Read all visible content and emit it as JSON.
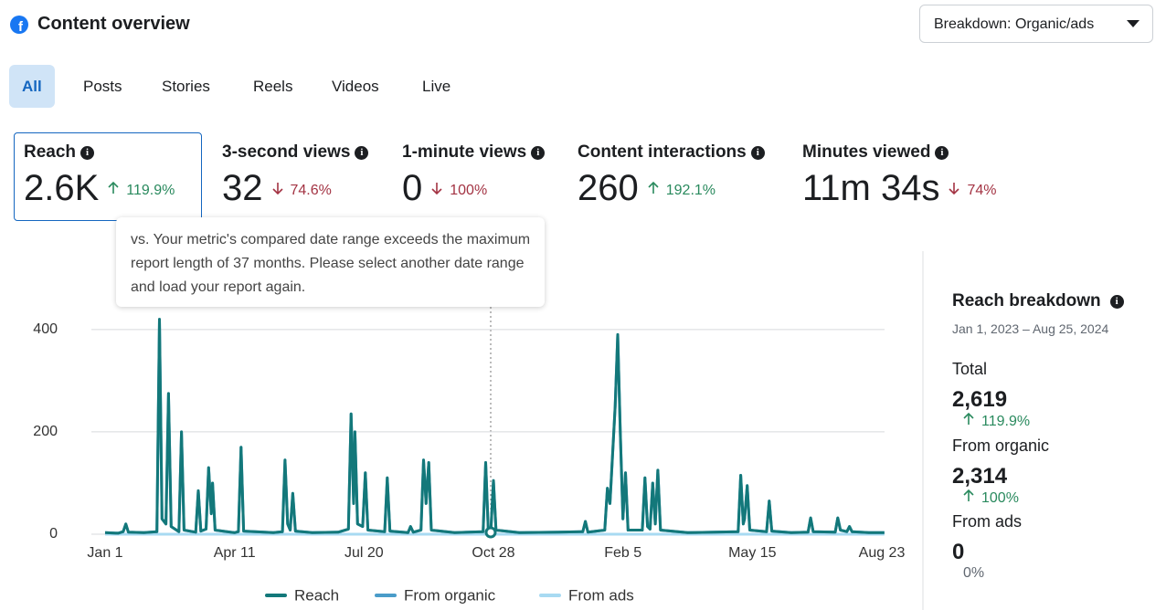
{
  "header": {
    "title": "Content overview",
    "breakdown_button": "Breakdown: Organic/ads"
  },
  "tabs": {
    "items": [
      "All",
      "Posts",
      "Stories",
      "Reels",
      "Videos",
      "Live"
    ],
    "selected": 0
  },
  "metrics": [
    {
      "label": "Reach",
      "value": "2.6K",
      "change": "119.9%",
      "direction": "up"
    },
    {
      "label": "3-second views",
      "value": "32",
      "change": "74.6%",
      "direction": "down"
    },
    {
      "label": "1-minute views",
      "value": "0",
      "change": "100%",
      "direction": "down"
    },
    {
      "label": "Content interactions",
      "value": "260",
      "change": "192.1%",
      "direction": "up"
    },
    {
      "label": "Minutes viewed",
      "value": "11m 34s",
      "change": "74%",
      "direction": "down"
    }
  ],
  "tooltip": "vs. Your metric's compared date range exceeds the maximum report length of 37 months. Please select another date range and load your report again.",
  "chart_data": {
    "type": "line",
    "xlim": [
      0,
      602
    ],
    "xticks": [
      {
        "value": 0,
        "label": "Jan 1"
      },
      {
        "value": 100,
        "label": "Apr 11"
      },
      {
        "value": 200,
        "label": "Jul 20"
      },
      {
        "value": 300,
        "label": "Oct 28"
      },
      {
        "value": 400,
        "label": "Feb 5"
      },
      {
        "value": 500,
        "label": "May 15"
      },
      {
        "value": 600,
        "label": "Aug 23"
      }
    ],
    "ylim": [
      0,
      430
    ],
    "yticks": [
      0,
      200,
      400
    ],
    "grid": true,
    "series": [
      {
        "name": "Reach",
        "color": "#13787a",
        "x": [
          0,
          10,
          14,
          16,
          18,
          30,
          40,
          42,
          44,
          47,
          49,
          51,
          57,
          59,
          61,
          70,
          72,
          74,
          78,
          80,
          82,
          83,
          85,
          100,
          103,
          105,
          107,
          130,
          137,
          139,
          141,
          143,
          145,
          147,
          160,
          180,
          188,
          190,
          192,
          193,
          195,
          199,
          201,
          203,
          216,
          218,
          220,
          234,
          236,
          238,
          244,
          246,
          248,
          250,
          252,
          270,
          292,
          294,
          296,
          298,
          300,
          302,
          320,
          350,
          369,
          371,
          373,
          386,
          388,
          390,
          394,
          396,
          398,
          400,
          402,
          404,
          415,
          417,
          419,
          421,
          423,
          425,
          427,
          429,
          450,
          489,
          491,
          493,
          494,
          496,
          498,
          511,
          513,
          515,
          530,
          543,
          545,
          547,
          564,
          566,
          568,
          573,
          575,
          577,
          590,
          602
        ],
        "values": [
          3,
          2,
          5,
          20,
          4,
          3,
          5,
          420,
          30,
          20,
          275,
          15,
          5,
          200,
          8,
          4,
          85,
          6,
          10,
          130,
          40,
          100,
          8,
          3,
          5,
          170,
          6,
          3,
          5,
          145,
          20,
          8,
          80,
          6,
          3,
          4,
          10,
          235,
          60,
          200,
          20,
          15,
          120,
          8,
          5,
          110,
          6,
          3,
          15,
          4,
          8,
          145,
          60,
          140,
          8,
          3,
          5,
          140,
          10,
          8,
          105,
          8,
          3,
          4,
          5,
          25,
          4,
          8,
          90,
          60,
          250,
          390,
          200,
          30,
          120,
          8,
          8,
          110,
          15,
          10,
          100,
          20,
          125,
          8,
          3,
          5,
          115,
          20,
          30,
          95,
          8,
          5,
          65,
          6,
          3,
          4,
          32,
          5,
          4,
          32,
          8,
          5,
          15,
          5,
          3,
          3
        ]
      },
      {
        "name": "From organic",
        "color": "#4a9cc9",
        "x": [
          0,
          10,
          14,
          16,
          18,
          30,
          40,
          42,
          44,
          47,
          49,
          51,
          57,
          59,
          61,
          70,
          72,
          74,
          78,
          80,
          82,
          83,
          85,
          100,
          103,
          105,
          107,
          130,
          137,
          139,
          141,
          143,
          145,
          147,
          160,
          180,
          188,
          190,
          192,
          193,
          195,
          199,
          201,
          203,
          216,
          218,
          220,
          234,
          236,
          238,
          244,
          246,
          248,
          250,
          252,
          270,
          292,
          294,
          296,
          298,
          300,
          302,
          320,
          350,
          369,
          371,
          373,
          386,
          388,
          390,
          394,
          396,
          398,
          400,
          402,
          404,
          415,
          417,
          419,
          421,
          423,
          425,
          427,
          429,
          450,
          489,
          491,
          493,
          494,
          496,
          498,
          511,
          513,
          515,
          530,
          543,
          545,
          547,
          564,
          566,
          568,
          573,
          575,
          577,
          590,
          602
        ],
        "values": [
          3,
          2,
          5,
          20,
          4,
          3,
          5,
          420,
          30,
          20,
          275,
          15,
          5,
          200,
          8,
          4,
          85,
          6,
          10,
          130,
          40,
          100,
          8,
          3,
          5,
          170,
          6,
          3,
          5,
          145,
          20,
          8,
          80,
          6,
          3,
          4,
          10,
          235,
          60,
          200,
          20,
          15,
          120,
          8,
          5,
          110,
          6,
          3,
          15,
          4,
          8,
          145,
          60,
          140,
          8,
          3,
          5,
          140,
          10,
          8,
          105,
          8,
          3,
          4,
          5,
          25,
          4,
          8,
          90,
          60,
          250,
          390,
          200,
          30,
          120,
          8,
          8,
          110,
          15,
          10,
          100,
          20,
          125,
          8,
          3,
          5,
          115,
          20,
          30,
          95,
          8,
          5,
          65,
          6,
          3,
          4,
          32,
          5,
          4,
          32,
          8,
          5,
          15,
          5,
          3,
          3
        ]
      },
      {
        "name": "From ads",
        "color": "#a8daf2",
        "x": [
          0,
          602
        ],
        "values": [
          0,
          0
        ]
      }
    ]
  },
  "breakdown": {
    "title": "Reach breakdown",
    "date_range": "Jan 1, 2023 – Aug 25, 2024",
    "rows": [
      {
        "label": "Total",
        "value": "2,619",
        "change": "119.9%",
        "direction": "up"
      },
      {
        "label": "From organic",
        "value": "2,314",
        "change": "100%",
        "direction": "up"
      },
      {
        "label": "From ads",
        "value": "0",
        "change": "0%",
        "direction": "none"
      }
    ]
  }
}
